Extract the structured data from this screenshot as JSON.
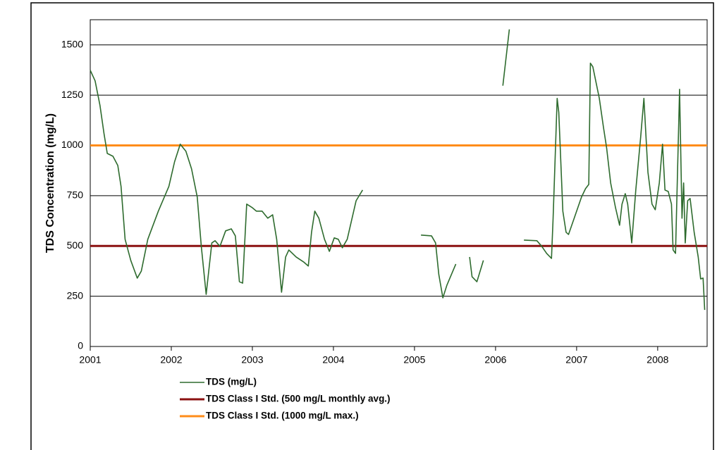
{
  "chart_data": {
    "type": "line",
    "ylabel": "TDS Concentration (mg/L)",
    "xlim": [
      2001,
      2008.61
    ],
    "ylim": [
      0,
      1625
    ],
    "xticks": [
      2001,
      2002,
      2003,
      2004,
      2005,
      2006,
      2007,
      2008
    ],
    "yticks": [
      0,
      250,
      500,
      750,
      1000,
      1250,
      1500
    ],
    "grid": true,
    "series": [
      {
        "name": "TDS (mg/L)",
        "color": "#2e6b2e",
        "x": [
          2001.0,
          2001.06,
          2001.12,
          2001.17,
          2001.21,
          2001.28,
          2001.34,
          2001.38,
          2001.43,
          2001.5,
          2001.58,
          2001.63,
          2001.71,
          2001.84,
          2001.97,
          2002.04,
          2002.11,
          2002.18,
          2002.25,
          2002.32,
          2002.37,
          2002.43,
          2002.5,
          2002.54,
          2002.6,
          2002.67,
          2002.74,
          2002.79,
          2002.84,
          2002.88,
          2002.93,
          2003.0,
          2003.05,
          2003.12,
          2003.19,
          2003.25,
          2003.3,
          2003.36,
          2003.41,
          2003.45,
          2003.54,
          2003.63,
          2003.69,
          2003.73,
          2003.77,
          2003.82,
          2003.89,
          2003.95,
          2004.01,
          2004.06,
          2004.11,
          2004.17,
          2004.23,
          2004.28,
          2004.36,
          2004.7,
          2005.08,
          2005.21,
          2005.26,
          2005.3,
          2005.35,
          2005.4,
          2005.51,
          2005.6,
          2005.68,
          2005.71,
          2005.77,
          2005.85,
          2006.0,
          2006.09,
          2006.17,
          2006.25,
          2006.35,
          2006.51,
          2006.57,
          2006.63,
          2006.69,
          2006.71,
          2006.76,
          2006.78,
          2006.83,
          2006.87,
          2006.9,
          2006.97,
          2007.06,
          2007.11,
          2007.15,
          2007.17,
          2007.2,
          2007.28,
          2007.33,
          2007.37,
          2007.42,
          2007.48,
          2007.53,
          2007.56,
          2007.6,
          2007.63,
          2007.68,
          2007.73,
          2007.79,
          2007.83,
          2007.88,
          2007.93,
          2007.97,
          2008.02,
          2008.06,
          2008.09,
          2008.13,
          2008.17,
          2008.19,
          2008.22,
          2008.27,
          2008.3,
          2008.32,
          2008.34,
          2008.37,
          2008.4,
          2008.45,
          2008.5,
          2008.53,
          2008.56,
          2008.58
        ],
        "values": [
          1374,
          1321,
          1199,
          1058,
          960,
          946,
          900,
          796,
          533,
          428,
          340,
          375,
          533,
          673,
          796,
          918,
          1006,
          971,
          883,
          743,
          498,
          259,
          515,
          526,
          498,
          575,
          585,
          550,
          322,
          315,
          708,
          690,
          673,
          673,
          638,
          655,
          533,
          270,
          445,
          480,
          445,
          421,
          400,
          568,
          673,
          638,
          533,
          473,
          540,
          533,
          491,
          533,
          638,
          725,
          778,
          null,
          554,
          550,
          515,
          358,
          242,
          305,
          410,
          null,
          445,
          347,
          322,
          428,
          null,
          1297,
          1577,
          null,
          529,
          526,
          498,
          463,
          438,
          638,
          1234,
          1164,
          673,
          568,
          557,
          638,
          743,
          785,
          806,
          1409,
          1391,
          1234,
          1093,
          988,
          813,
          690,
          603,
          708,
          760,
          708,
          515,
          778,
          1041,
          1234,
          866,
          708,
          680,
          813,
          1006,
          778,
          771,
          708,
          480,
          463,
          1279,
          638,
          813,
          515,
          725,
          736,
          568,
          445,
          336,
          340,
          182
        ]
      },
      {
        "name": "TDS Class I Std. (500 mg/L monthly avg.)",
        "color": "#8b1010",
        "x": [
          2001,
          2008.61
        ],
        "values": [
          500,
          500
        ]
      },
      {
        "name": "TDS Class I Std. (1000 mg/L max.)",
        "color": "#ff8c1a",
        "x": [
          2001,
          2008.61
        ],
        "values": [
          1000,
          1000
        ]
      }
    ]
  }
}
